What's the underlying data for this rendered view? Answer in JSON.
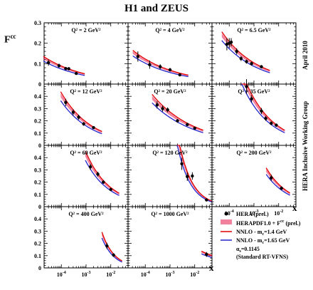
{
  "title": "H1 and ZEUS",
  "ylabel": "F",
  "ylabel_sup": "cc",
  "ylabel_sub": "2",
  "side_note_top": "April 2010",
  "side_note_bottom": "HERA Inclusive Working Group",
  "xlabel": "x",
  "legend": {
    "data_label": "HERA (prel.)",
    "band_label": "HERAPDF1.0 + F",
    "band_label_sup": "cc",
    "band_label_sub": "2",
    "band_label_tail": " (prel.)",
    "nnlo1_label": "NNLO - m",
    "nnlo1_sub": "c",
    "nnlo1_tail": "=1.4 GeV",
    "nnlo2_label": "NNLO - m",
    "nnlo2_sub": "c",
    "nnlo2_tail": "=1.65 GeV",
    "alpha_label": "α",
    "alpha_sub": "s",
    "alpha_tail": "=0.1145",
    "scheme_label": "(Standard RT-VFNS)"
  },
  "colors": {
    "band": "#e6194b",
    "nnlo1": "#e00000",
    "nnlo2": "#2222cc",
    "data": "#000000"
  },
  "chart_data": {
    "type": "scatter",
    "x_scale": "log",
    "xlim": [
      2e-05,
      0.05
    ],
    "x_ticks": [
      {
        "base": "10",
        "exp": "-4"
      },
      {
        "base": "10",
        "exp": "-3"
      },
      {
        "base": "10",
        "exp": "-2"
      }
    ],
    "y_ticks": [
      "0",
      "0.1",
      "0.2",
      "0.3",
      "0.4"
    ],
    "panels": [
      {
        "q2": "Q² = 2 GeV²",
        "ylim": [
          0,
          0.3
        ],
        "x": [
          3e-05,
          8e-05,
          0.00015,
          0.0002,
          0.0004
        ],
        "y": [
          0.105,
          0.09,
          0.076,
          0.075,
          0.052
        ],
        "err": [
          0.015,
          0.01,
          0.008,
          0.008,
          0.006
        ]
      },
      {
        "q2": "Q² = 4 GeV²",
        "ylim": [
          0,
          0.3
        ],
        "x": [
          5e-05,
          0.00015,
          0.0004,
          0.001,
          0.0025
        ],
        "y": [
          0.135,
          0.095,
          0.085,
          0.07,
          0.045
        ],
        "err": [
          0.025,
          0.02,
          0.012,
          0.009,
          0.006
        ]
      },
      {
        "q2": "Q² = 6.5 GeV²",
        "ylim": [
          0,
          0.3
        ],
        "x": [
          8e-05,
          0.0001,
          0.00012,
          0.0002,
          0.0003,
          0.0005,
          0.0008,
          0.002
        ],
        "y": [
          0.195,
          0.2,
          0.205,
          0.16,
          0.125,
          0.11,
          0.1,
          0.085
        ],
        "err": [
          0.03,
          0.025,
          0.02,
          0.015,
          0.012,
          0.01,
          0.01,
          0.008
        ]
      },
      {
        "q2": "Q² = 12 GeV²",
        "ylim": [
          0,
          0.5
        ],
        "x": [
          0.00015,
          0.0003,
          0.0005,
          0.0008,
          0.002
        ],
        "y": [
          0.35,
          0.27,
          0.23,
          0.175,
          0.145
        ],
        "err": [
          0.03,
          0.025,
          0.02,
          0.015,
          0.012
        ]
      },
      {
        "q2": "Q² = 20 GeV²",
        "ylim": [
          0,
          0.5
        ],
        "x": [
          0.0003,
          0.0005,
          0.0008,
          0.002,
          0.005,
          0.01
        ],
        "y": [
          0.33,
          0.3,
          0.29,
          0.2,
          0.17,
          0.14
        ],
        "err": [
          0.03,
          0.025,
          0.02,
          0.015,
          0.012,
          0.01
        ]
      },
      {
        "q2": "Q² = 35 GeV²",
        "ylim": [
          0,
          0.5
        ],
        "x": [
          0.0005,
          0.0008,
          0.002,
          0.003,
          0.005,
          0.008
        ],
        "y": [
          0.48,
          0.38,
          0.28,
          0.22,
          0.18,
          0.165
        ],
        "err": [
          0.06,
          0.03,
          0.025,
          0.02,
          0.015,
          0.012
        ]
      },
      {
        "q2": "Q² = 60 GeV²",
        "ylim": [
          0,
          0.5
        ],
        "x": [
          0.0015,
          0.003,
          0.005,
          0.01
        ],
        "y": [
          0.325,
          0.265,
          0.2,
          0.14
        ],
        "err": [
          0.025,
          0.02,
          0.015,
          0.012
        ]
      },
      {
        "q2": "Q² = 120 GeV²",
        "ylim": [
          0,
          0.5
        ],
        "x": [
          0.003,
          0.005,
          0.008,
          0.03
        ],
        "y": [
          0.35,
          0.245,
          0.25,
          0.055
        ],
        "err": [
          0.05,
          0.035,
          0.03,
          0.01
        ]
      },
      {
        "q2": "Q² = 200 GeV²",
        "ylim": [
          0,
          0.5
        ],
        "x": [
          0.005,
          0.013
        ],
        "y": [
          0.235,
          0.15
        ],
        "err": [
          0.025,
          0.015
        ]
      },
      {
        "q2": "Q² = 400 GeV²",
        "ylim": [
          0,
          0.5
        ],
        "x": [
          0.007,
          0.013
        ],
        "y": [
          0.18,
          0.105
        ],
        "err": [
          0.025,
          0.015
        ]
      },
      {
        "q2": "Q² = 1000 GeV²",
        "ylim": [
          0,
          0.5
        ],
        "x": [
          0.03
        ],
        "y": [
          0.11
        ],
        "err": [
          0.02
        ]
      }
    ]
  }
}
